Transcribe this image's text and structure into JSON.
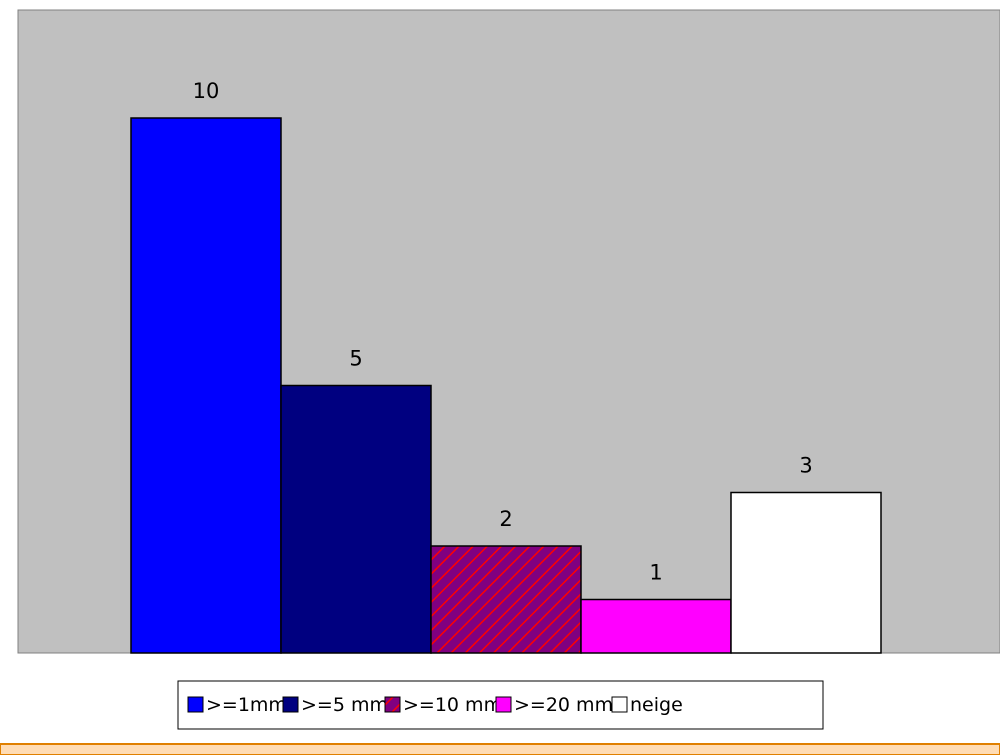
{
  "chart_data": {
    "type": "bar",
    "categories": [
      ">=1mm",
      ">=5 mm",
      ">=10 mm",
      ">=20 mm",
      "neige"
    ],
    "values": [
      10,
      5,
      2,
      1,
      3
    ],
    "data_labels": [
      "10",
      "5",
      "2",
      "1",
      "3"
    ],
    "ylim": [
      0,
      11.5
    ],
    "grid": false,
    "legend_position": "bottom",
    "colors": {
      "plot_background": "#c0c0c0",
      "series": [
        "#0000ff",
        "#000080",
        "#800080",
        "#ff00ff",
        "#ffffff"
      ],
      "hatch_fill": "#800080",
      "hatch_line": "#ff0000",
      "footer_band": "#ffdcb4",
      "footer_border": "#e08000"
    },
    "legend": {
      "entries": [
        ">=1mm",
        ">=5 mm",
        ">=10 mm",
        ">=20 mm",
        "neige"
      ]
    }
  }
}
